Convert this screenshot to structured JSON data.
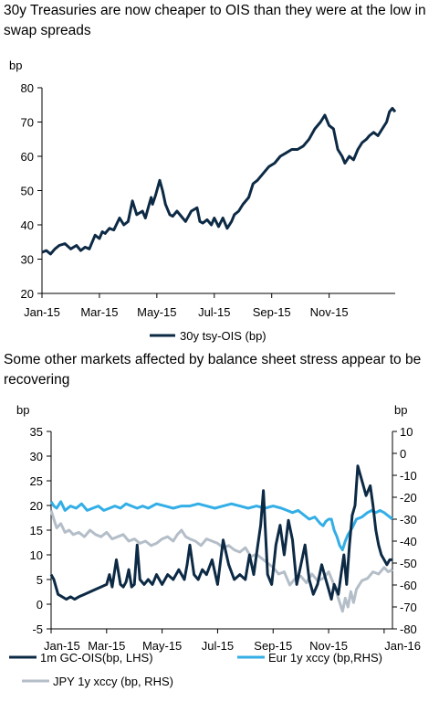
{
  "chart_data": [
    {
      "type": "line",
      "title": "30y Treasuries are now cheaper to OIS than they were at the low in swap spreads",
      "ylabel": "bp",
      "ylim": [
        20,
        80
      ],
      "yticks": [
        20,
        30,
        40,
        50,
        60,
        70,
        80
      ],
      "categories": [
        "Jan-15",
        "Mar-15",
        "May-15",
        "Jul-15",
        "Sep-15",
        "Nov-15"
      ],
      "xlim": [
        0,
        12.3
      ],
      "grid": false,
      "legend": "bottom",
      "series": [
        {
          "name": "30y tsy-OIS (bp)",
          "color": "#0d2a45",
          "x": [
            0,
            0.15,
            0.3,
            0.45,
            0.6,
            0.8,
            1.0,
            1.2,
            1.35,
            1.5,
            1.65,
            1.85,
            2.0,
            2.1,
            2.2,
            2.35,
            2.5,
            2.7,
            2.85,
            3.0,
            3.15,
            3.3,
            3.5,
            3.6,
            3.7,
            3.8,
            3.85,
            3.95,
            4.1,
            4.2,
            4.3,
            4.35,
            4.45,
            4.55,
            4.7,
            4.85,
            5.0,
            5.2,
            5.4,
            5.5,
            5.6,
            5.75,
            5.9,
            6.0,
            6.15,
            6.3,
            6.45,
            6.6,
            6.7,
            6.85,
            7.0,
            7.2,
            7.35,
            7.5,
            7.7,
            7.9,
            8.1,
            8.3,
            8.5,
            8.7,
            8.9,
            9.1,
            9.3,
            9.5,
            9.7,
            9.85,
            10.0,
            10.15,
            10.3,
            10.45,
            10.55,
            10.7,
            10.85,
            11.0,
            11.15,
            11.3,
            11.4,
            11.55,
            11.7,
            11.85,
            12.0,
            12.1,
            12.2,
            12.3
          ],
          "values": [
            32,
            32.5,
            31.5,
            33,
            34,
            34.5,
            33,
            34,
            32.5,
            33.5,
            33,
            37,
            36,
            38,
            37.5,
            39,
            38.5,
            42,
            40,
            41,
            47,
            43,
            44,
            42,
            45,
            48,
            46,
            48.5,
            53,
            50,
            46,
            45,
            43,
            42.5,
            44,
            42.5,
            41,
            44,
            45,
            41,
            40.5,
            41.5,
            40,
            42,
            39.5,
            42,
            39,
            41,
            43,
            44,
            46,
            48,
            52,
            53,
            55,
            57,
            58,
            60,
            61,
            62,
            62,
            63,
            65,
            68,
            70,
            72,
            69,
            68,
            62,
            60,
            58,
            60,
            59,
            62,
            64,
            65,
            66,
            67,
            66,
            68,
            70,
            73,
            74,
            73
          ]
        }
      ]
    },
    {
      "type": "line",
      "title": "Some other markets affected by balance sheet stress appear to be recovering",
      "ylabel": "bp",
      "ylim": [
        -5,
        35
      ],
      "yticks": [
        -5,
        0,
        5,
        10,
        15,
        20,
        25,
        30,
        35
      ],
      "y2label": "bp",
      "y2lim": [
        -80,
        10
      ],
      "y2ticks": [
        -80,
        -70,
        -60,
        -50,
        -40,
        -30,
        -20,
        -10,
        0,
        10
      ],
      "categories": [
        "Jan-15",
        "Mar-15",
        "May-15",
        "Jul-15",
        "Sep-15",
        "Nov-15",
        "Jan-16"
      ],
      "xlim": [
        0,
        12.3
      ],
      "grid": false,
      "legend": "bottom",
      "series": [
        {
          "name": "1m GC-OIS(bp, LHS)",
          "axis": "left",
          "color": "#0d2a45",
          "x": [
            0,
            0.1,
            0.25,
            0.4,
            0.55,
            0.7,
            0.85,
            1.0,
            1.2,
            1.4,
            1.6,
            1.8,
            2.0,
            2.1,
            2.2,
            2.35,
            2.5,
            2.6,
            2.7,
            2.8,
            2.9,
            3.0,
            3.1,
            3.2,
            3.35,
            3.5,
            3.65,
            3.8,
            4.0,
            4.2,
            4.4,
            4.6,
            4.8,
            4.9,
            5.0,
            5.15,
            5.3,
            5.45,
            5.6,
            5.8,
            6.0,
            6.2,
            6.4,
            6.6,
            6.8,
            7.0,
            7.15,
            7.3,
            7.45,
            7.55,
            7.65,
            7.8,
            7.95,
            8.1,
            8.25,
            8.4,
            8.55,
            8.7,
            8.85,
            9.0,
            9.15,
            9.3,
            9.45,
            9.6,
            9.75,
            9.9,
            10.0,
            10.1,
            10.2,
            10.35,
            10.45,
            10.55,
            10.65,
            10.75,
            10.85,
            10.95,
            11.05,
            11.2,
            11.35,
            11.5,
            11.6,
            11.7,
            11.8,
            11.9,
            12.0,
            12.1,
            12.2,
            12.3
          ],
          "values": [
            6,
            5,
            2,
            1.5,
            1,
            1.5,
            1,
            1.5,
            2,
            2.5,
            3,
            3.5,
            4,
            6,
            3.5,
            9,
            4,
            3.5,
            4.5,
            7,
            3.5,
            4,
            12,
            5,
            4,
            5,
            4,
            6,
            4,
            6,
            5,
            7,
            5,
            8,
            12,
            6,
            5,
            7,
            6,
            9,
            4,
            13,
            8,
            5,
            6,
            5,
            10,
            6,
            12,
            16,
            23,
            6,
            4,
            12,
            16,
            10,
            17,
            13,
            4,
            8,
            12,
            5,
            2,
            4,
            8,
            5,
            3,
            1,
            4,
            2,
            6,
            10,
            4,
            12,
            18,
            20,
            28,
            25,
            22,
            24,
            20,
            15,
            12,
            10,
            9,
            8,
            9,
            9
          ]
        },
        {
          "name": "Eur 1y xccy (bp,RHS)",
          "axis": "right",
          "color": "#33aee6",
          "x": [
            0,
            0.1,
            0.2,
            0.35,
            0.5,
            0.7,
            0.9,
            1.1,
            1.3,
            1.5,
            1.7,
            1.9,
            2.1,
            2.3,
            2.5,
            2.7,
            2.9,
            3.1,
            3.3,
            3.5,
            3.8,
            4.1,
            4.4,
            4.7,
            5.0,
            5.3,
            5.6,
            5.9,
            6.2,
            6.5,
            6.8,
            7.1,
            7.4,
            7.7,
            8.0,
            8.3,
            8.5,
            8.7,
            8.9,
            9.1,
            9.3,
            9.5,
            9.7,
            9.8,
            9.9,
            10.0,
            10.1,
            10.2,
            10.3,
            10.4,
            10.5,
            10.6,
            10.7,
            10.85,
            11.0,
            11.2,
            11.4,
            11.55,
            11.7,
            11.85,
            12.0,
            12.1,
            12.2,
            12.3
          ],
          "values": [
            -22,
            -24,
            -25,
            -22,
            -26,
            -24,
            -25,
            -23,
            -26,
            -25,
            -24,
            -26,
            -25,
            -24,
            -25,
            -23,
            -24,
            -25,
            -24,
            -25,
            -23,
            -24,
            -25,
            -24,
            -24,
            -23,
            -24,
            -25,
            -24,
            -23,
            -24,
            -25,
            -24,
            -25,
            -24,
            -25,
            -26,
            -27,
            -26,
            -28,
            -30,
            -29,
            -32,
            -33,
            -31,
            -30,
            -30,
            -35,
            -38,
            -42,
            -44,
            -40,
            -37,
            -34,
            -30,
            -29,
            -27,
            -26,
            -27,
            -26,
            -27,
            -28,
            -29,
            -30
          ]
        },
        {
          "name": "JPY 1y xccy (bp, RHS)",
          "axis": "right",
          "color": "#b4bec8",
          "x": [
            0,
            0.1,
            0.2,
            0.35,
            0.5,
            0.65,
            0.8,
            1.0,
            1.2,
            1.4,
            1.6,
            1.8,
            2.0,
            2.2,
            2.4,
            2.6,
            2.8,
            3.0,
            3.2,
            3.4,
            3.6,
            3.8,
            4.0,
            4.2,
            4.4,
            4.55,
            4.7,
            4.85,
            5.0,
            5.2,
            5.4,
            5.6,
            5.8,
            6.0,
            6.2,
            6.4,
            6.6,
            6.8,
            7.0,
            7.2,
            7.4,
            7.6,
            7.8,
            8.0,
            8.2,
            8.4,
            8.6,
            8.8,
            9.0,
            9.2,
            9.4,
            9.6,
            9.8,
            10.0,
            10.2,
            10.4,
            10.5,
            10.6,
            10.7,
            10.8,
            10.9,
            11.0,
            11.1,
            11.2,
            11.4,
            11.6,
            11.8,
            12.0,
            12.15,
            12.3
          ],
          "values": [
            -26,
            -30,
            -34,
            -32,
            -36,
            -35,
            -37,
            -36,
            -38,
            -35,
            -37,
            -38,
            -36,
            -39,
            -38,
            -37,
            -40,
            -39,
            -41,
            -40,
            -42,
            -41,
            -39,
            -38,
            -40,
            -37,
            -35,
            -38,
            -39,
            -40,
            -42,
            -39,
            -40,
            -41,
            -43,
            -42,
            -44,
            -45,
            -43,
            -47,
            -46,
            -48,
            -50,
            -52,
            -55,
            -54,
            -60,
            -57,
            -56,
            -59,
            -55,
            -58,
            -57,
            -54,
            -60,
            -68,
            -72,
            -66,
            -70,
            -63,
            -68,
            -62,
            -60,
            -58,
            -57,
            -54,
            -55,
            -52,
            -54,
            -53
          ]
        }
      ]
    }
  ]
}
